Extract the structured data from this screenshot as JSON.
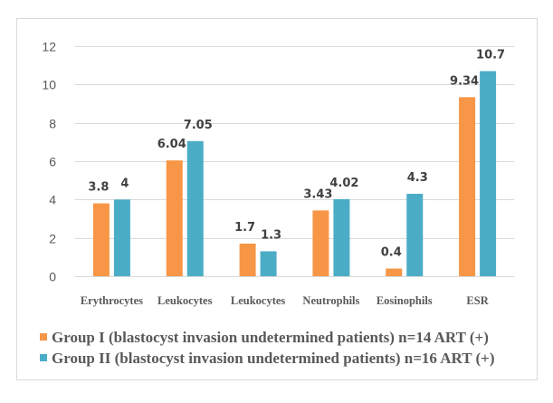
{
  "chart_data": {
    "type": "bar",
    "title": "",
    "xlabel": "",
    "ylabel": "",
    "ylim": [
      0,
      12
    ],
    "yticks": [
      0,
      2,
      4,
      6,
      8,
      10,
      12
    ],
    "grid": true,
    "legend_position": "bottom",
    "categories": [
      "Erythrocytes",
      "Leukocytes",
      "Leukocytes",
      "Neutrophils",
      "Eosinophils",
      "ESR"
    ],
    "series": [
      {
        "name": "Group I (blastocyst invasion undetermined patients) n=14 ART (+)",
        "color": "#F79646",
        "values": [
          3.8,
          6.04,
          1.7,
          3.43,
          0.4,
          9.34
        ],
        "labels": [
          "3.8",
          "6.04",
          "1.7",
          "3.43",
          "0.4",
          "9.34"
        ]
      },
      {
        "name": "Group II (blastocyst invasion undetermined patients) n=16 ART (+)",
        "color": "#4BACC6",
        "values": [
          4,
          7.05,
          1.3,
          4.02,
          4.3,
          10.7
        ],
        "labels": [
          "4",
          "7.05",
          "1.3",
          "4.02",
          "4.3",
          "10.7"
        ]
      }
    ]
  }
}
